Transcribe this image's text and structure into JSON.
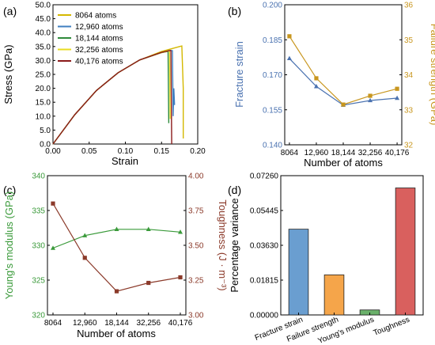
{
  "chart_data": [
    {
      "panel_label": "(a)",
      "type": "line",
      "xlabel": "Strain",
      "ylabel": "Stress (GPa)",
      "xlim": [
        0,
        0.2
      ],
      "ylim": [
        0,
        50
      ],
      "xticks": [
        "0.00",
        "0.05",
        "0.10",
        "0.15",
        "0.20"
      ],
      "yticks": [
        "0.0",
        "5.0",
        "10.0",
        "15.0",
        "20.0",
        "25.0",
        "30.0",
        "35.0",
        "40.0",
        "45.0",
        "50.0"
      ],
      "legend_position": "top-left",
      "series": [
        {
          "name": "8064 atoms",
          "color": "#d4b800",
          "x": [
            0,
            0.03,
            0.06,
            0.09,
            0.12,
            0.15,
            0.175,
            0.178,
            0.18,
            0.18
          ],
          "y": [
            0,
            10.5,
            19.2,
            25.6,
            30.2,
            33.2,
            35.0,
            35.2,
            20.0,
            2.0
          ]
        },
        {
          "name": "12,960 atoms",
          "color": "#3f7fc0",
          "x": [
            0,
            0.03,
            0.06,
            0.09,
            0.12,
            0.15,
            0.163,
            0.165,
            0.166,
            0.167,
            0.168
          ],
          "y": [
            0,
            10.5,
            19.2,
            25.6,
            30.2,
            32.8,
            33.6,
            33.5,
            10.0,
            20.0,
            14.0
          ]
        },
        {
          "name": "18,144 atoms",
          "color": "#2e8a3a",
          "x": [
            0,
            0.03,
            0.06,
            0.09,
            0.12,
            0.15,
            0.158,
            0.159,
            0.16
          ],
          "y": [
            0,
            10.5,
            19.2,
            25.6,
            30.2,
            32.8,
            33.2,
            33.0,
            7.5
          ]
        },
        {
          "name": "32,256 atoms",
          "color": "#e8dc20",
          "x": [
            0,
            0.03,
            0.06,
            0.09,
            0.12,
            0.15,
            0.16,
            0.161,
            0.162
          ],
          "y": [
            0,
            10.5,
            19.2,
            25.6,
            30.2,
            32.8,
            33.4,
            33.3,
            9.0
          ]
        },
        {
          "name": "40,176 atoms",
          "color": "#8b1a1a",
          "x": [
            0,
            0.03,
            0.06,
            0.09,
            0.12,
            0.15,
            0.162,
            0.163,
            0.164
          ],
          "y": [
            0,
            10.5,
            19.2,
            25.6,
            30.2,
            32.9,
            33.6,
            33.5,
            0.0
          ]
        }
      ]
    },
    {
      "panel_label": "(b)",
      "type": "line",
      "categories": [
        "8064",
        "12,960",
        "18,144",
        "32,256",
        "40,176"
      ],
      "xlabel": "Number of atoms",
      "ylabel_left": "Fracture strain",
      "ylabel_right": "Failure strength (GPa)",
      "ylim_left": [
        0.14,
        0.2
      ],
      "ylim_right": [
        32,
        36
      ],
      "yticks_left": [
        "0.140",
        "0.155",
        "0.170",
        "0.185",
        "0.200"
      ],
      "yticks_right": [
        "32",
        "33",
        "34",
        "35",
        "36"
      ],
      "left_color": "#4a72b0",
      "right_color": "#c8961e",
      "series": [
        {
          "axis": "left",
          "marker": "triangle",
          "values": [
            0.177,
            0.165,
            0.157,
            0.159,
            0.16
          ]
        },
        {
          "axis": "right",
          "marker": "square",
          "values": [
            35.1,
            33.9,
            33.15,
            33.4,
            33.6
          ]
        }
      ]
    },
    {
      "panel_label": "(c)",
      "type": "line",
      "categories": [
        "8064",
        "12,960",
        "18,144",
        "32,256",
        "40,176"
      ],
      "xlabel": "Number of atoms",
      "ylabel_left": "Young's modulus (GPa)",
      "ylabel_right": "Toughness (J · m⁻³)",
      "ylim_left": [
        320,
        340
      ],
      "ylim_right": [
        3.0,
        4.0
      ],
      "yticks_left": [
        "320",
        "325",
        "330",
        "335",
        "340"
      ],
      "yticks_right": [
        "3.00",
        "3.25",
        "3.50",
        "3.75",
        "4.00"
      ],
      "left_color": "#3a9a3a",
      "right_color": "#8b3a2a",
      "series": [
        {
          "axis": "left",
          "marker": "triangle",
          "values": [
            329.6,
            331.4,
            332.3,
            332.3,
            331.9
          ]
        },
        {
          "axis": "right",
          "marker": "square",
          "values": [
            3.8,
            3.41,
            3.17,
            3.23,
            3.27
          ]
        }
      ]
    },
    {
      "panel_label": "(d)",
      "type": "bar",
      "categories": [
        "Fracture strain",
        "Failure strength",
        "Young's modulus",
        "Toughness"
      ],
      "values": [
        0.0447,
        0.0209,
        0.0026,
        0.0662
      ],
      "colors": [
        "#6a9ed0",
        "#f5a54a",
        "#6ab06a",
        "#d9605e"
      ],
      "ylabel": "Percentage variance",
      "ylim": [
        0,
        0.0726
      ],
      "yticks": [
        "0.00000",
        "0.01815",
        "0.03630",
        "0.05445",
        "0.07260"
      ]
    }
  ]
}
